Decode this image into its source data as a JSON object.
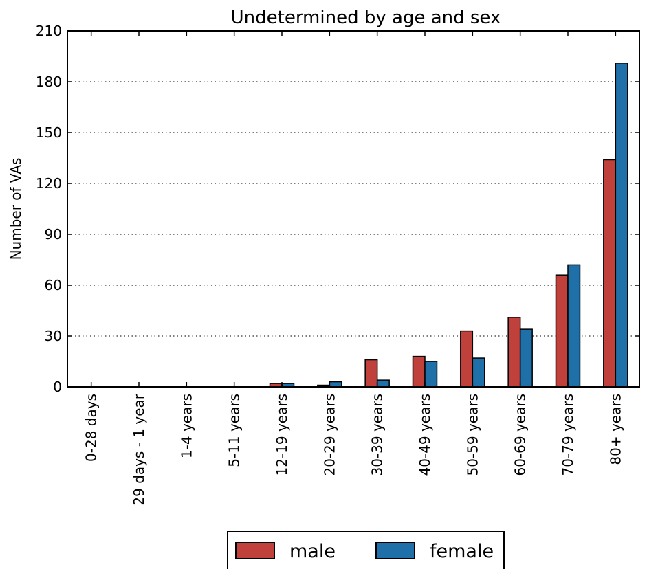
{
  "chart_data": {
    "type": "bar",
    "title": "Undetermined by age and sex",
    "xlabel": "",
    "ylabel": "Number of VAs",
    "ylim": [
      0,
      210
    ],
    "yticks": [
      0,
      30,
      60,
      90,
      120,
      150,
      180,
      210
    ],
    "grid": "y-dotted",
    "legend_position": "bottom-center",
    "categories": [
      "0-28 days",
      "29 days - 1 year",
      "1-4 years",
      "5-11 years",
      "12-19 years",
      "20-29 years",
      "30-39 years",
      "40-49 years",
      "50-59 years",
      "60-69 years",
      "70-79 years",
      "80+ years"
    ],
    "series": [
      {
        "name": "male",
        "color": "#c0403b",
        "values": [
          0,
          0,
          0,
          0,
          2,
          1,
          16,
          18,
          33,
          41,
          66,
          134
        ]
      },
      {
        "name": "female",
        "color": "#1f6fa8",
        "values": [
          0,
          0,
          0,
          0,
          2,
          3,
          4,
          15,
          17,
          34,
          72,
          191
        ]
      }
    ]
  }
}
